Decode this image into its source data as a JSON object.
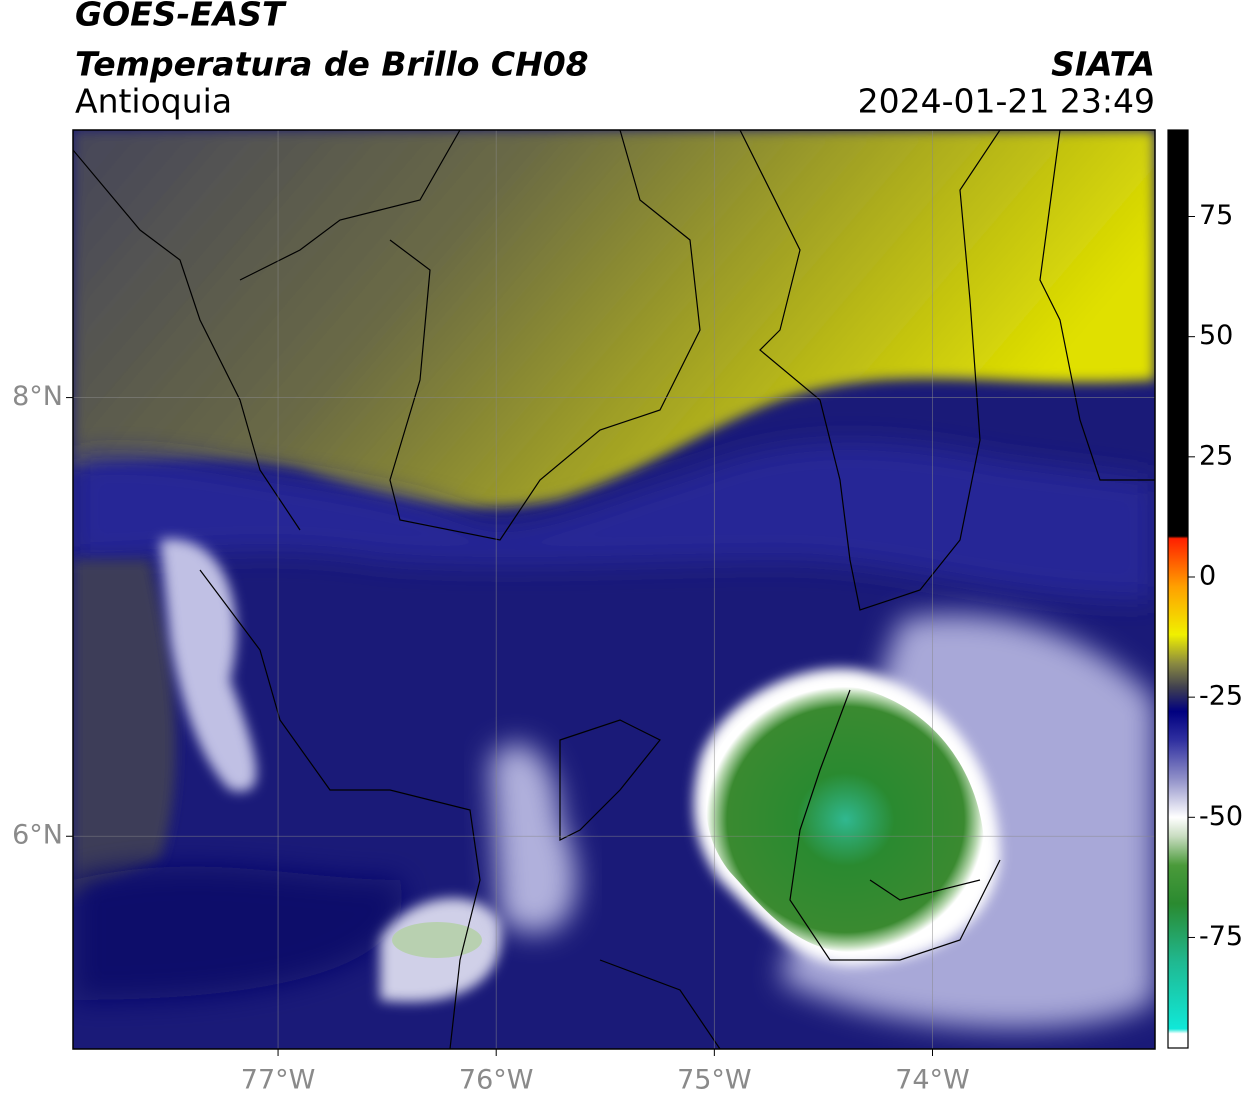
{
  "header": {
    "satellite": "GOES-EAST",
    "product": "Temperatura de Brillo CH08",
    "region": "Antioquia",
    "source": "SIATA",
    "datetime": "2024-01-21 23:49"
  },
  "map": {
    "xlim": [
      -77.94,
      -72.98
    ],
    "ylim": [
      5.03,
      9.22
    ],
    "xticks": [
      {
        "value": -77,
        "label": "77°W"
      },
      {
        "value": -76,
        "label": "76°W"
      },
      {
        "value": -75,
        "label": "75°W"
      },
      {
        "value": -74,
        "label": "74°W"
      }
    ],
    "yticks": [
      {
        "value": 6,
        "label": "6°N"
      },
      {
        "value": 8,
        "label": "8°N"
      }
    ],
    "grid": true
  },
  "colorbar": {
    "lim": [
      -98,
      93
    ],
    "ticks": [
      75,
      50,
      25,
      0,
      -25,
      -50,
      -75
    ],
    "stops": [
      {
        "value": -98,
        "color": "#ffffff"
      },
      {
        "value": -95,
        "color": "#ffffff"
      },
      {
        "value": -94,
        "color": "#10e8d8"
      },
      {
        "value": -80,
        "color": "#20b890"
      },
      {
        "value": -68,
        "color": "#2a8a30"
      },
      {
        "value": -60,
        "color": "#4a9a3a"
      },
      {
        "value": -54,
        "color": "#c8dcc0"
      },
      {
        "value": -50,
        "color": "#ffffff"
      },
      {
        "value": -42,
        "color": "#9090c8"
      },
      {
        "value": -34,
        "color": "#3030a0"
      },
      {
        "value": -28,
        "color": "#000080"
      },
      {
        "value": -23,
        "color": "#404050"
      },
      {
        "value": -18,
        "color": "#8a8a40"
      },
      {
        "value": -12,
        "color": "#f0f000"
      },
      {
        "value": -2,
        "color": "#ffa000"
      },
      {
        "value": 8,
        "color": "#ff2000"
      },
      {
        "value": 8.5,
        "color": "#000000"
      },
      {
        "value": 93,
        "color": "#000000"
      }
    ]
  }
}
